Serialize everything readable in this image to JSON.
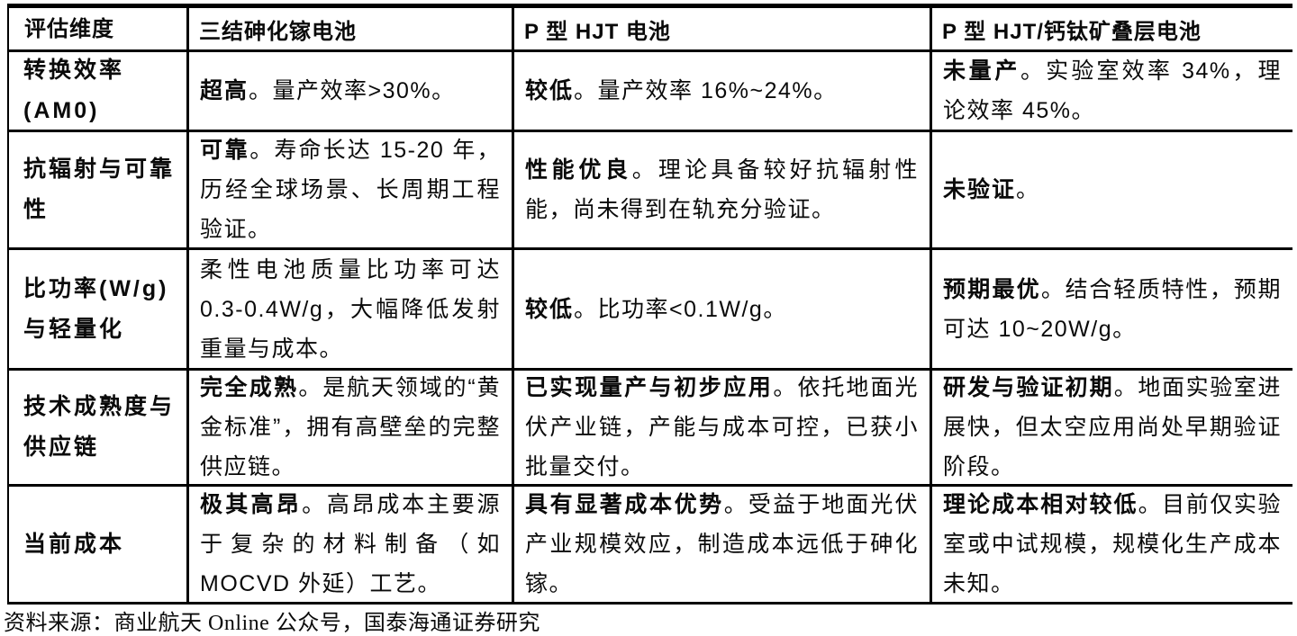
{
  "table": {
    "headers": {
      "dimension": "评估维度",
      "col1": "三结砷化镓电池",
      "col2": "P 型 HJT 电池",
      "col3": "P 型 HJT/钙钛矿叠层电池"
    },
    "rows": [
      {
        "dimension": "转换效率\n(AM0)",
        "cells": [
          {
            "lead": "超高",
            "text": "。量产效率>30%。"
          },
          {
            "lead": "较低",
            "text": "。量产效率 16%~24%。"
          },
          {
            "lead": "未量产",
            "text": "。实验室效率 34%，理论效率 45%。"
          }
        ]
      },
      {
        "dimension": "抗辐射与可靠\n性",
        "cells": [
          {
            "lead": "可靠",
            "text": "。寿命长达 15-20 年，历经全球场景、长周期工程验证。"
          },
          {
            "lead": "性能优良",
            "text": "。理论具备较好抗辐射性能，尚未得到在轨充分验证。"
          },
          {
            "lead": "未验证",
            "text": "。"
          }
        ]
      },
      {
        "dimension": "比功率(W/g)\n与轻量化",
        "cells": [
          {
            "lead": "",
            "text": "柔性电池质量比功率可达 0.3-0.4W/g，大幅降低发射重量与成本。"
          },
          {
            "lead": "较低",
            "text": "。比功率<0.1W/g。"
          },
          {
            "lead": "预期最优",
            "text": "。结合轻质特性，预期可达 10~20W/g。"
          }
        ]
      },
      {
        "dimension": "技术成熟度与\n供应链",
        "cells": [
          {
            "lead": "完全成熟",
            "text": "。是航天领域的“黄金标准”，拥有高壁垒的完整供应链。"
          },
          {
            "lead": "已实现量产与初步应用",
            "text": "。依托地面光伏产业链，产能与成本可控，已获小批量交付。"
          },
          {
            "lead": "研发与验证初期",
            "text": "。地面实验室进展快，但太空应用尚处早期验证阶段。"
          }
        ]
      },
      {
        "dimension": "当前成本",
        "cells": [
          {
            "lead": "极其高昂",
            "text": "。高昂成本主要源于复杂的材料制备（如 MOCVD 外延）工艺。"
          },
          {
            "lead": "具有显著成本优势",
            "text": "。受益于地面光伏产业规模效应，制造成本远低于砷化镓。"
          },
          {
            "lead": "理论成本相对较低",
            "text": "。目前仅实验室或中试规模，规模化生产成本未知。"
          }
        ]
      }
    ]
  },
  "footer": {
    "source": "资料来源：商业航天 Online 公众号，国泰海通证券研究"
  }
}
